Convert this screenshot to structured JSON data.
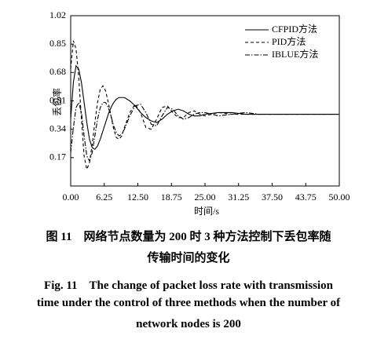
{
  "chart_data": {
    "type": "line",
    "ylabel": "丢包率",
    "xlabel": "时间/s",
    "x": [
      0,
      0.5,
      1,
      1.5,
      2,
      2.5,
      3,
      3.5,
      4,
      4.5,
      5,
      5.5,
      6,
      6.5,
      7,
      7.5,
      8,
      8.5,
      9,
      9.5,
      10,
      11,
      12,
      13,
      14,
      15,
      16,
      17,
      18,
      19,
      20,
      21,
      22,
      23,
      24,
      25,
      27.5,
      30,
      32.5,
      35,
      37.5,
      40,
      42.5,
      45,
      47.5,
      50
    ],
    "series": [
      {
        "name": "CFPID方法",
        "color": "#000000",
        "style": "solid",
        "values": [
          0.4,
          0.62,
          0.72,
          0.7,
          0.62,
          0.5,
          0.38,
          0.28,
          0.23,
          0.22,
          0.24,
          0.28,
          0.33,
          0.38,
          0.43,
          0.47,
          0.5,
          0.52,
          0.53,
          0.53,
          0.53,
          0.51,
          0.48,
          0.44,
          0.41,
          0.39,
          0.38,
          0.4,
          0.43,
          0.45,
          0.46,
          0.45,
          0.43,
          0.42,
          0.42,
          0.43,
          0.44,
          0.44,
          0.43,
          0.43,
          0.43,
          0.43,
          0.43,
          0.43,
          0.43,
          0.43
        ]
      },
      {
        "name": "PID方法",
        "color": "#000000",
        "style": "dashed",
        "values": [
          0.7,
          0.87,
          0.82,
          0.65,
          0.4,
          0.18,
          0.1,
          0.14,
          0.25,
          0.38,
          0.5,
          0.58,
          0.6,
          0.57,
          0.5,
          0.42,
          0.34,
          0.29,
          0.28,
          0.3,
          0.35,
          0.44,
          0.49,
          0.44,
          0.35,
          0.34,
          0.4,
          0.47,
          0.48,
          0.44,
          0.41,
          0.41,
          0.44,
          0.45,
          0.43,
          0.42,
          0.44,
          0.43,
          0.43,
          0.43,
          0.43,
          0.43,
          0.43,
          0.43,
          0.43,
          0.43
        ]
      },
      {
        "name": "IBLUE方法",
        "color": "#000000",
        "style": "dashdot",
        "values": [
          0.2,
          0.35,
          0.47,
          0.5,
          0.44,
          0.3,
          0.18,
          0.15,
          0.2,
          0.3,
          0.4,
          0.47,
          0.5,
          0.5,
          0.47,
          0.42,
          0.36,
          0.32,
          0.3,
          0.31,
          0.34,
          0.42,
          0.48,
          0.49,
          0.44,
          0.37,
          0.36,
          0.42,
          0.47,
          0.46,
          0.42,
          0.4,
          0.41,
          0.43,
          0.44,
          0.44,
          0.42,
          0.43,
          0.44,
          0.43,
          0.43,
          0.43,
          0.43,
          0.43,
          0.43,
          0.43
        ]
      }
    ],
    "xlim": [
      0,
      50
    ],
    "xticks": [
      {
        "value": 0,
        "label": "0.00"
      },
      6.25,
      {
        "value": 12.5,
        "label": "12.50"
      },
      18.75,
      {
        "value": 25,
        "label": "25.00"
      },
      31.25,
      {
        "value": 37.5,
        "label": "37.50"
      },
      43.75,
      {
        "value": 50,
        "label": "50.00"
      }
    ],
    "ylim": [
      0,
      1.02
    ],
    "yticks": [
      0.17,
      0.34,
      0.51,
      0.68,
      0.85,
      1.02
    ],
    "grid": false,
    "legend": "upper right"
  },
  "caption": {
    "zh": [
      "图 11　网络节点数量为 200 时 3 种方法控制下丢包率随",
      "传输时间的变化"
    ],
    "en": [
      "Fig. 11　The change of packet loss rate with transmission",
      "time under the control of three methods when the number of",
      "network nodes is 200"
    ]
  }
}
